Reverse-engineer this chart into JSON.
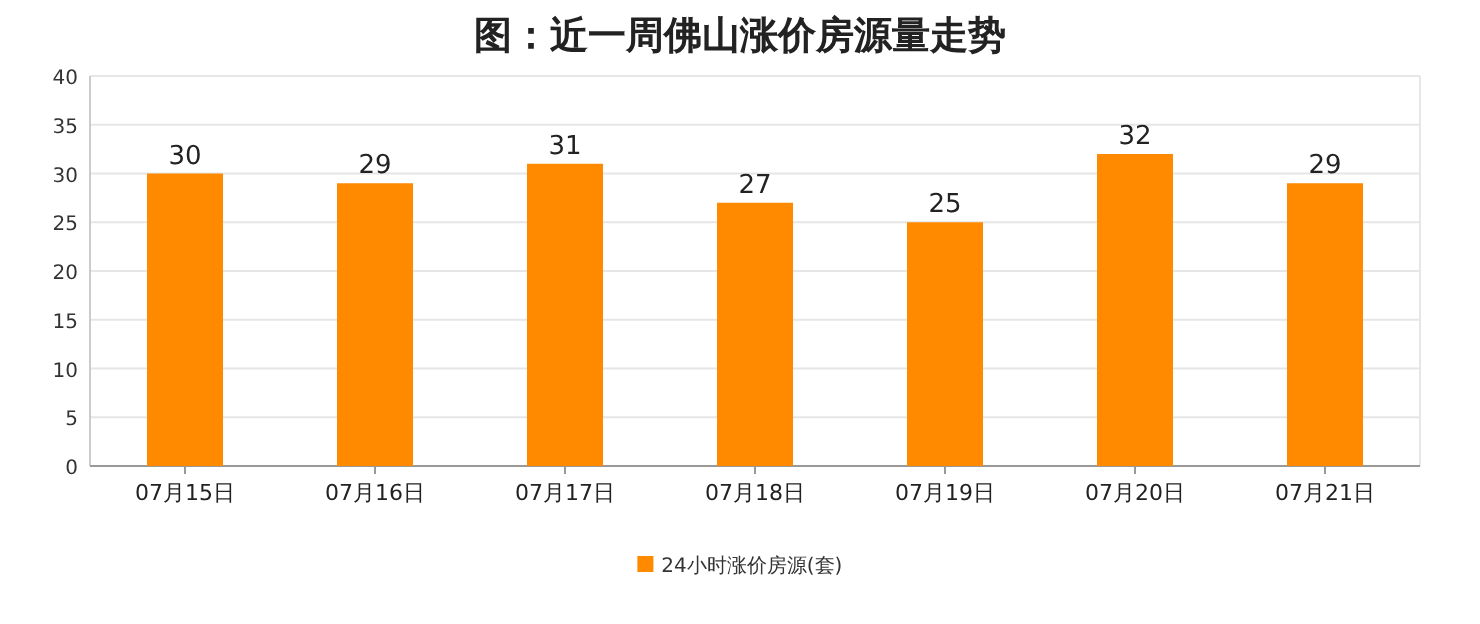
{
  "chart_data": {
    "type": "bar",
    "title": "图：近一周佛山涨价房源量走势",
    "categories": [
      "07月15日",
      "07月16日",
      "07月17日",
      "07月18日",
      "07月19日",
      "07月20日",
      "07月21日"
    ],
    "series": [
      {
        "name": "24小时涨价房源(套)",
        "color": "#ff8a00",
        "values": [
          30,
          29,
          31,
          27,
          25,
          32,
          29
        ]
      }
    ],
    "ylim": [
      0,
      40
    ],
    "yticks": [
      0,
      5,
      10,
      15,
      20,
      25,
      30,
      35,
      40
    ],
    "grid": "y",
    "legend": "bottom",
    "data_labels": true
  }
}
